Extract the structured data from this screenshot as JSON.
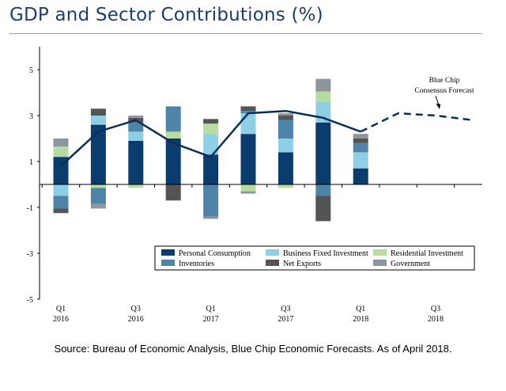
{
  "title": "GDP and Sector Contributions (%)",
  "source": "Source: Bureau of Economic Analysis, Blue Chip Economic Forecasts. As of April 2018.",
  "chart_data": {
    "type": "bar",
    "stacked": true,
    "y_ticks": [
      5,
      3,
      1,
      -1,
      -3,
      -5
    ],
    "ylim": [
      -5,
      6
    ],
    "x_tick_labels": [
      {
        "index": 0,
        "quarter": "Q1",
        "year": "2016"
      },
      {
        "index": 2,
        "quarter": "Q3",
        "year": "2016"
      },
      {
        "index": 4,
        "quarter": "Q1",
        "year": "2017"
      },
      {
        "index": 6,
        "quarter": "Q3",
        "year": "2017"
      },
      {
        "index": 8,
        "quarter": "Q1",
        "year": "2018"
      },
      {
        "index": 10,
        "quarter": "Q3",
        "year": "2018"
      }
    ],
    "series": [
      {
        "name": "Personal Consumption",
        "color": "#0b3c6e",
        "values": [
          1.2,
          2.6,
          1.9,
          2.0,
          1.3,
          2.2,
          1.4,
          2.7,
          0.7
        ]
      },
      {
        "name": "Business Fixed Investment",
        "color": "#8fcfe6",
        "values": [
          -0.5,
          0.4,
          0.4,
          0.0,
          0.9,
          0.9,
          0.6,
          0.9,
          0.7
        ]
      },
      {
        "name": "Residential Investment",
        "color": "#b7dca2",
        "values": [
          0.45,
          -0.15,
          -0.15,
          0.3,
          0.45,
          -0.3,
          -0.15,
          0.45,
          0.0
        ]
      },
      {
        "name": "Inventories",
        "color": "#4f84a9",
        "values": [
          -0.55,
          -0.7,
          0.4,
          1.1,
          -1.4,
          0.1,
          0.8,
          -0.5,
          0.4
        ]
      },
      {
        "name": "Net Exports",
        "color": "#545454",
        "values": [
          -0.2,
          0.3,
          0.2,
          -0.7,
          0.2,
          0.2,
          0.2,
          -1.1,
          0.2
        ]
      },
      {
        "name": "Government",
        "color": "#8e959b",
        "values": [
          0.35,
          -0.2,
          0.1,
          0.0,
          -0.1,
          -0.1,
          0.1,
          0.55,
          0.2
        ]
      }
    ],
    "gdp_line": {
      "actual": [
        0.8,
        2.3,
        2.8,
        1.8,
        1.2,
        3.1,
        3.2,
        2.9,
        2.3
      ],
      "forecast": [
        {
          "index": 8,
          "value": 2.3
        },
        {
          "index": 9,
          "value": 3.1
        },
        {
          "index": 10,
          "value": 3.0
        },
        {
          "index": 11,
          "value": 2.8
        }
      ]
    },
    "annotation": {
      "line1": "Blue Chip",
      "line2": "Consensus Forecast"
    },
    "legend_position": "bottom-right"
  }
}
